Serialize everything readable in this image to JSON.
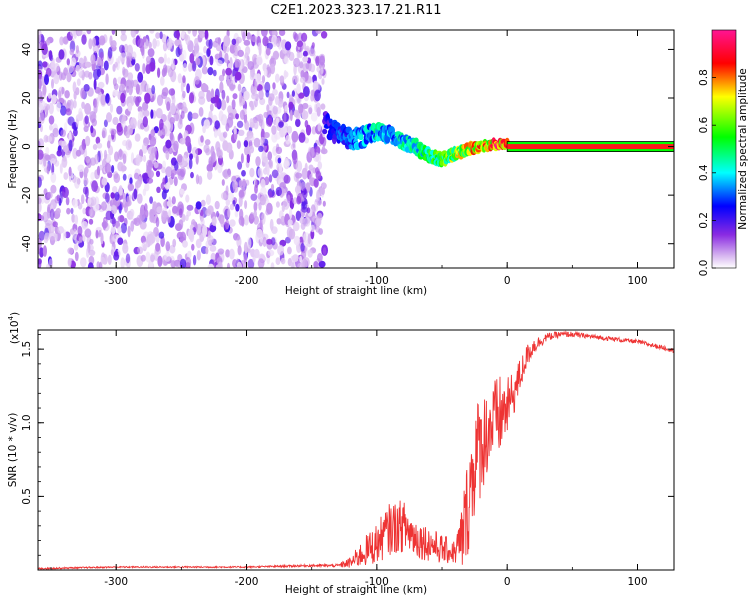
{
  "title": "C2E1.2023.323.17.21.R11",
  "chart_data": [
    {
      "type": "heatmap",
      "xlabel": "Height of straight line (km)",
      "ylabel": "Frequency (Hz)",
      "xlim": [
        -360,
        128
      ],
      "ylim": [
        -50,
        48
      ],
      "x_ticks": [
        -300,
        -200,
        -100,
        0,
        100
      ],
      "y_ticks": [
        -40,
        -20,
        0,
        20,
        40
      ],
      "colorbar": {
        "label": "Normalized spectral amplitude",
        "range": [
          0.0,
          1.0
        ],
        "ticks": [
          0.0,
          0.2,
          0.4,
          0.6,
          0.8
        ],
        "colormap": [
          "#ffffff",
          "#8a2be2",
          "#0000ff",
          "#00ffff",
          "#00ff00",
          "#ffff00",
          "#ff0000",
          "#ff1493"
        ]
      },
      "signal_track": {
        "x": [
          -140,
          -130,
          -120,
          -110,
          -100,
          -90,
          -80,
          -70,
          -60,
          -50,
          -40,
          -30,
          -20,
          -10,
          0,
          128
        ],
        "y": [
          10,
          5,
          3,
          4,
          6,
          5,
          2,
          0,
          -4,
          -5,
          -3,
          -1,
          0,
          1,
          1,
          0
        ],
        "amplitude": [
          0.25,
          0.3,
          0.35,
          0.4,
          0.45,
          0.4,
          0.45,
          0.5,
          0.55,
          0.6,
          0.7,
          0.75,
          0.85,
          0.9,
          0.95,
          0.95
        ]
      },
      "noise_region": {
        "x_range": [
          -360,
          -140
        ],
        "amplitude": 0.12
      }
    },
    {
      "type": "line",
      "xlabel": "Height of straight line (km)",
      "ylabel": "SNR (10 * v/v)",
      "y_multiplier": "(x10",
      "y_multiplier_exp": "4",
      "y_multiplier_close": ")",
      "xlim": [
        -360,
        128
      ],
      "ylim": [
        0,
        1.63
      ],
      "x_ticks": [
        -300,
        -200,
        -100,
        0,
        100
      ],
      "y_ticks": [
        0.5,
        1.0,
        1.5
      ],
      "y_tick_labels": [
        "0.5",
        "1.0",
        "1.5"
      ],
      "series": [
        {
          "color": "#ee3333",
          "x": [
            -360,
            -300,
            -250,
            -200,
            -150,
            -130,
            -120,
            -110,
            -100,
            -90,
            -80,
            -70,
            -60,
            -50,
            -40,
            -35,
            -30,
            -25,
            -20,
            -15,
            -10,
            -5,
            0,
            5,
            10,
            15,
            20,
            25,
            30,
            40,
            50,
            60,
            70,
            80,
            90,
            100,
            110,
            120,
            128
          ],
          "y": [
            0.01,
            0.02,
            0.02,
            0.02,
            0.03,
            0.03,
            0.05,
            0.12,
            0.18,
            0.28,
            0.3,
            0.22,
            0.18,
            0.14,
            0.12,
            0.2,
            0.45,
            0.75,
            0.85,
            0.95,
            1.0,
            1.05,
            1.1,
            1.2,
            1.32,
            1.45,
            1.52,
            1.55,
            1.58,
            1.6,
            1.6,
            1.59,
            1.58,
            1.57,
            1.56,
            1.55,
            1.53,
            1.51,
            1.49
          ],
          "spread": [
            0.005,
            0.005,
            0.005,
            0.005,
            0.008,
            0.01,
            0.04,
            0.1,
            0.14,
            0.18,
            0.18,
            0.14,
            0.12,
            0.1,
            0.08,
            0.25,
            0.35,
            0.4,
            0.35,
            0.3,
            0.3,
            0.28,
            0.2,
            0.16,
            0.12,
            0.08,
            0.06,
            0.04,
            0.03,
            0.02,
            0.02,
            0.015,
            0.015,
            0.015,
            0.015,
            0.015,
            0.015,
            0.015,
            0.015
          ]
        }
      ]
    }
  ]
}
